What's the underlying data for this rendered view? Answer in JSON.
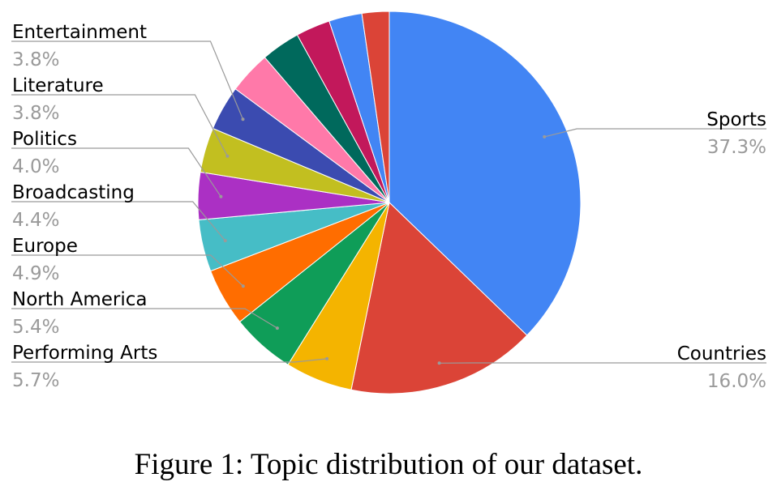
{
  "caption": "Figure 1: Topic distribution of our dataset.",
  "chart_data": {
    "type": "pie",
    "slices": [
      {
        "label": "Sports",
        "value": 37.3,
        "value_label": "37.3%",
        "color": "#4285f4",
        "labeled": true,
        "label_side": "right"
      },
      {
        "label": "Countries",
        "value": 16.0,
        "value_label": "16.0%",
        "color": "#db4437",
        "labeled": true,
        "label_side": "right"
      },
      {
        "label": "Performing Arts",
        "value": 5.7,
        "value_label": "5.7%",
        "color": "#f4b400",
        "labeled": true,
        "label_side": "left"
      },
      {
        "label": "North America",
        "value": 5.4,
        "value_label": "5.4%",
        "color": "#0f9d58",
        "labeled": true,
        "label_side": "left"
      },
      {
        "label": "Europe",
        "value": 4.9,
        "value_label": "4.9%",
        "color": "#ff6d00",
        "labeled": true,
        "label_side": "left"
      },
      {
        "label": "Broadcasting",
        "value": 4.4,
        "value_label": "4.4%",
        "color": "#46bdc6",
        "labeled": true,
        "label_side": "left"
      },
      {
        "label": "Politics",
        "value": 4.0,
        "value_label": "4.0%",
        "color": "#ab30c4",
        "labeled": true,
        "label_side": "left"
      },
      {
        "label": "Literature",
        "value": 3.8,
        "value_label": "3.8%",
        "color": "#c2bf20",
        "labeled": true,
        "label_side": "left"
      },
      {
        "label": "Entertainment",
        "value": 3.8,
        "value_label": "3.8%",
        "color": "#3b4bb0",
        "labeled": true,
        "label_side": "left"
      },
      {
        "label": "",
        "value": 3.6,
        "color": "#ff79a9",
        "labeled": false
      },
      {
        "label": "",
        "value": 3.3,
        "color": "#00695c",
        "labeled": false
      },
      {
        "label": "",
        "value": 2.9,
        "color": "#c2185b",
        "labeled": false
      },
      {
        "label": "",
        "value": 2.8,
        "color": "#4285f4",
        "labeled": false
      },
      {
        "label": "",
        "value": 2.3,
        "color": "#db4437",
        "labeled": false
      }
    ],
    "start_angle_deg": 0,
    "direction": "clockwise",
    "leader_line_color": "#9a9a9a"
  }
}
